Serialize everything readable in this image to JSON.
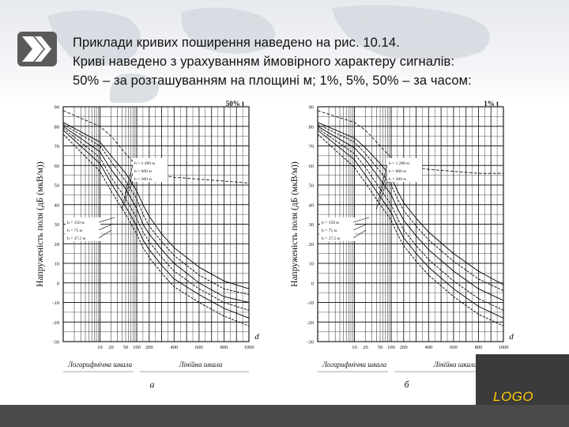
{
  "slide": {
    "lines": [
      "Приклади кривих поширення наведено на рис. 10.14.",
      "Криві наведено з урахуванням ймовірного характеру сигналів:",
      "50% – за розташуванням на площині м; 1%, 5%, 50% – за часом:"
    ],
    "logo": "LOGO"
  },
  "colors": {
    "accent": "#ffcc00",
    "dark_band": "#4a4a4a",
    "grid": "#222222"
  },
  "icons": {
    "bullet": "double-chevron-icon"
  },
  "chart_data": [
    {
      "type": "line",
      "panel_label": "а",
      "time_label": "50% t",
      "ylabel": "Напруженість поля (дБ (мкВ/м))",
      "xlabel_left": "Логарифмічна шкала",
      "xlabel_right": "Лінійна шкала",
      "x_axis_letter": "d",
      "ylim": [
        -30,
        90
      ],
      "yticks": [
        "90",
        "80",
        "70",
        "60",
        "50",
        "40",
        "30",
        "20",
        "10",
        "0",
        "-10",
        "-20",
        "-30"
      ],
      "xticks": [
        "10",
        "20",
        "50",
        "100",
        "200",
        "400",
        "600",
        "800",
        "1000"
      ],
      "legend_top": [
        "h = 1 200 м",
        "h = 600 м",
        "h = 300 м"
      ],
      "legend_bottom": [
        "h = 150 м",
        "h = 75 м",
        "h = 37,5 м"
      ],
      "series": [
        {
          "x": [
            1,
            10,
            20,
            50,
            100,
            150,
            200,
            300,
            400,
            600,
            800,
            1000
          ],
          "y": [
            82,
            72,
            65,
            56,
            47,
            40,
            34,
            25,
            18,
            8,
            1,
            -3
          ]
        },
        {
          "x": [
            1,
            10,
            20,
            50,
            100,
            150,
            200,
            300,
            400,
            600,
            800,
            1000
          ],
          "y": [
            81,
            70,
            62,
            52,
            43,
            35,
            29,
            21,
            14,
            4,
            -3,
            -6
          ]
        },
        {
          "x": [
            1,
            10,
            20,
            50,
            100,
            150,
            200,
            300,
            400,
            600,
            800,
            1000
          ],
          "y": [
            80,
            67,
            58,
            48,
            38,
            30,
            25,
            17,
            10,
            0,
            -7,
            -10
          ]
        },
        {
          "x": [
            1,
            10,
            20,
            50,
            100,
            150,
            200,
            300,
            400,
            600,
            800,
            1000
          ],
          "y": [
            79,
            64,
            54,
            43,
            33,
            26,
            21,
            13,
            6,
            -3,
            -10,
            -14
          ]
        },
        {
          "x": [
            1,
            10,
            20,
            50,
            100,
            150,
            200,
            300,
            400,
            600,
            800,
            1000
          ],
          "y": [
            78,
            61,
            51,
            39,
            29,
            22,
            17,
            9,
            2,
            -6,
            -13,
            -18
          ]
        },
        {
          "x": [
            1,
            10,
            20,
            50,
            100,
            150,
            200,
            300,
            400,
            600,
            800,
            1000
          ],
          "y": [
            76,
            57,
            47,
            35,
            25,
            18,
            13,
            5,
            -2,
            -10,
            -17,
            -22
          ]
        }
      ],
      "dashed_series": {
        "x": [
          1,
          10,
          20,
          50,
          100,
          150,
          200,
          300,
          400,
          600,
          800,
          1000
        ],
        "y": [
          88,
          80,
          75,
          66,
          60,
          58,
          56,
          55,
          54,
          53,
          52,
          51
        ]
      }
    },
    {
      "type": "line",
      "panel_label": "б",
      "time_label": "1% t",
      "ylabel": "Напруженість поля (дБ (мкВ/м))",
      "xlabel_left": "Логарифмічна шкала",
      "xlabel_right": "Лінійна шкала",
      "x_axis_letter": "d",
      "ylim": [
        -30,
        90
      ],
      "yticks": [
        "90",
        "80",
        "70",
        "60",
        "50",
        "40",
        "30",
        "20",
        "10",
        "0",
        "-10",
        "-20",
        "-30"
      ],
      "xticks": [
        "10",
        "20",
        "50",
        "100",
        "200",
        "400",
        "600",
        "800",
        "1000"
      ],
      "legend_top": [
        "h = 1 200 м",
        "h = 600 м",
        "h = 300 м"
      ],
      "legend_bottom": [
        "h = 150 м",
        "h = 75 м",
        "h = 37,5 м"
      ],
      "series": [
        {
          "x": [
            1,
            10,
            20,
            50,
            100,
            150,
            200,
            300,
            400,
            600,
            800,
            1000
          ],
          "y": [
            82,
            74,
            69,
            61,
            54,
            47,
            41,
            33,
            26,
            15,
            6,
            -1
          ]
        },
        {
          "x": [
            1,
            10,
            20,
            50,
            100,
            150,
            200,
            300,
            400,
            600,
            800,
            1000
          ],
          "y": [
            81,
            72,
            66,
            57,
            50,
            43,
            37,
            29,
            22,
            11,
            2,
            -4
          ]
        },
        {
          "x": [
            1,
            10,
            20,
            50,
            100,
            150,
            200,
            300,
            400,
            600,
            800,
            1000
          ],
          "y": [
            80,
            69,
            63,
            53,
            45,
            38,
            32,
            24,
            17,
            6,
            -3,
            -9
          ]
        },
        {
          "x": [
            1,
            10,
            20,
            50,
            100,
            150,
            200,
            300,
            400,
            600,
            800,
            1000
          ],
          "y": [
            79,
            66,
            59,
            48,
            40,
            33,
            27,
            19,
            12,
            1,
            -8,
            -14
          ]
        },
        {
          "x": [
            1,
            10,
            20,
            50,
            100,
            150,
            200,
            300,
            400,
            600,
            800,
            1000
          ],
          "y": [
            78,
            63,
            55,
            44,
            36,
            29,
            23,
            15,
            8,
            -3,
            -12,
            -18
          ]
        },
        {
          "x": [
            1,
            10,
            20,
            50,
            100,
            150,
            200,
            300,
            400,
            600,
            800,
            1000
          ],
          "y": [
            76,
            59,
            51,
            40,
            32,
            25,
            19,
            11,
            4,
            -7,
            -16,
            -22
          ]
        }
      ],
      "dashed_series": {
        "x": [
          1,
          10,
          20,
          50,
          100,
          150,
          200,
          300,
          400,
          600,
          800,
          1000
        ],
        "y": [
          88,
          82,
          78,
          70,
          64,
          61,
          60,
          59,
          58,
          57,
          56,
          56
        ]
      }
    }
  ]
}
